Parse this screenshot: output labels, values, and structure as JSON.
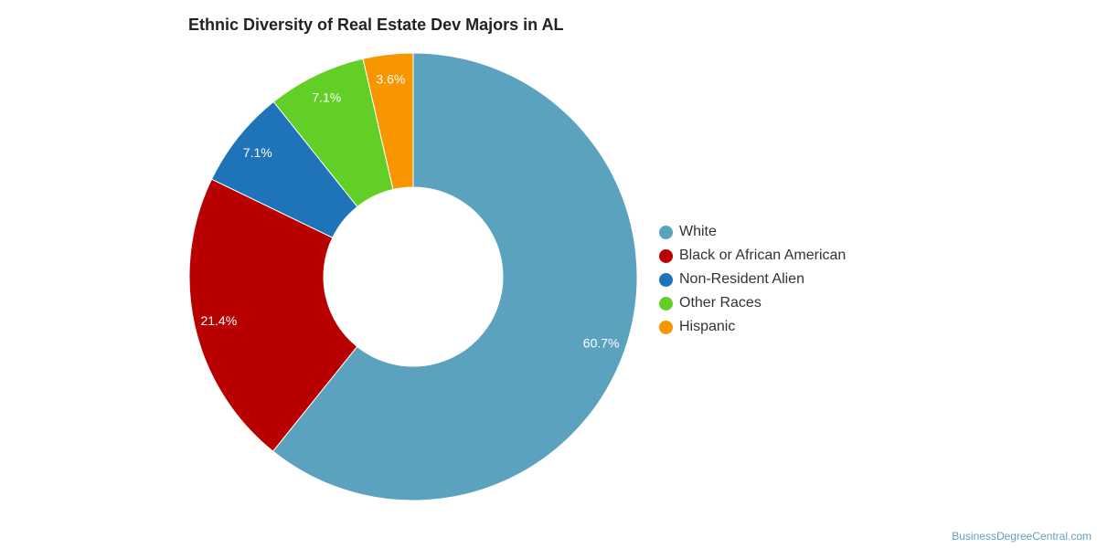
{
  "chart_data": {
    "type": "pie",
    "title": "Ethnic Diversity of Real Estate Dev Majors in AL",
    "categories": [
      "White",
      "Black or African American",
      "Non-Resident Alien",
      "Other Races",
      "Hispanic"
    ],
    "values": [
      60.7,
      21.4,
      7.1,
      7.1,
      3.6
    ],
    "value_labels": [
      "60.7%",
      "21.4%",
      "7.1%",
      "7.1%",
      "3.6%"
    ],
    "colors": [
      "#5ba2be",
      "#b90000",
      "#1f74b9",
      "#61cf26",
      "#f89600"
    ],
    "legend_position": "right",
    "donut": true
  },
  "legend": [
    {
      "label": "White",
      "color": "#5ba2be"
    },
    {
      "label": "Black or African American",
      "color": "#b90000"
    },
    {
      "label": "Non-Resident Alien",
      "color": "#1f74b9"
    },
    {
      "label": "Other Races",
      "color": "#61cf26"
    },
    {
      "label": "Hispanic",
      "color": "#f89600"
    }
  ],
  "watermark": "BusinessDegreeCentral.com"
}
